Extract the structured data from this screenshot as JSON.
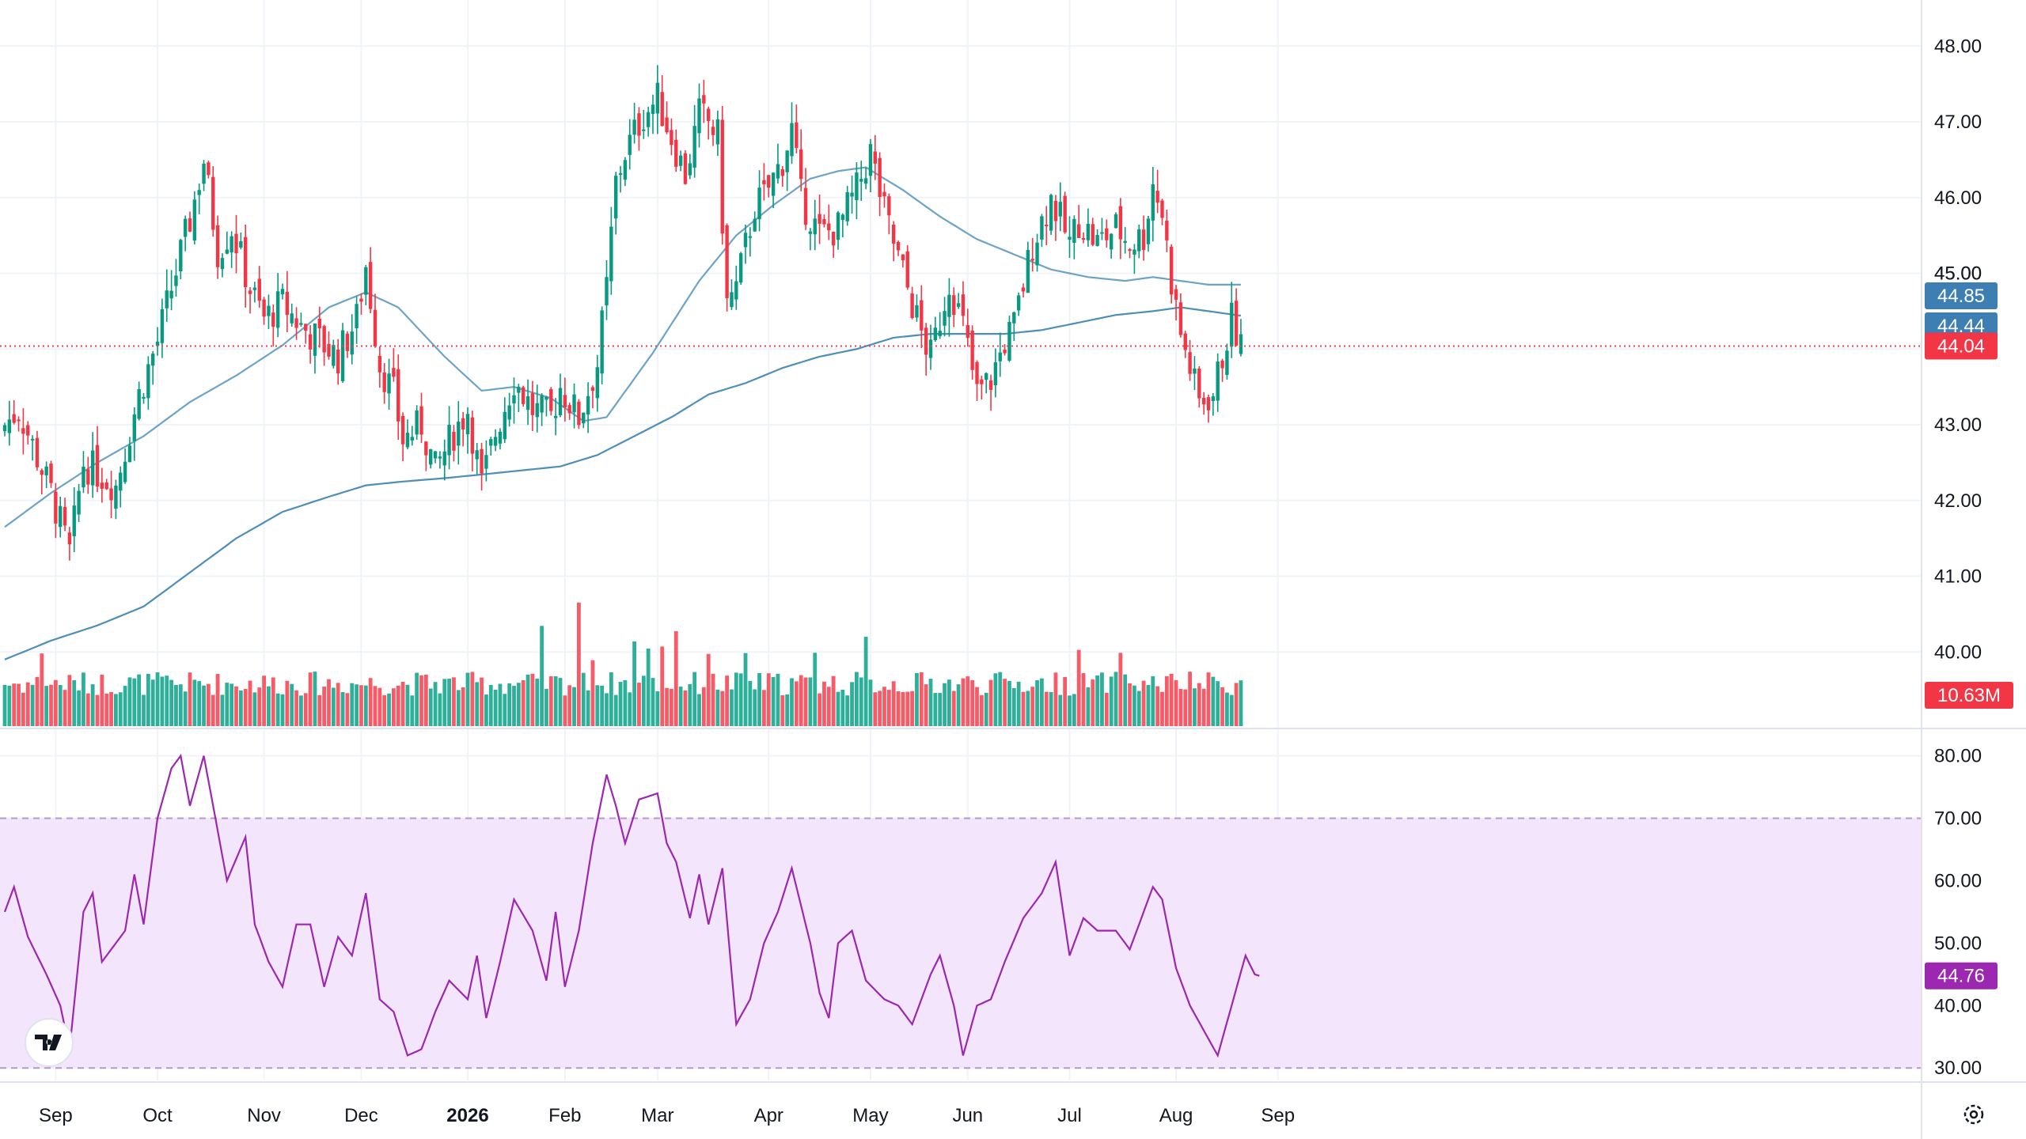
{
  "chart_data": {
    "type": "candlestick",
    "price_axis": {
      "range": [
        39.0,
        48.4
      ],
      "ticks": [
        "48.00",
        "47.00",
        "46.00",
        "45.00",
        "44.00",
        "43.00",
        "42.00",
        "41.00",
        "40.00"
      ]
    },
    "rsi_axis": {
      "range": [
        28,
        84
      ],
      "ticks": [
        "80.00",
        "70.00",
        "60.00",
        "50.00",
        "40.00",
        "30.00"
      ],
      "band": [
        30,
        70
      ]
    },
    "time_axis": {
      "labels": [
        {
          "text": "Sep",
          "bar": 11,
          "bold": false
        },
        {
          "text": "Oct",
          "bar": 33,
          "bold": false
        },
        {
          "text": "Nov",
          "bar": 56,
          "bold": false
        },
        {
          "text": "Dec",
          "bar": 77,
          "bold": false
        },
        {
          "text": "2026",
          "bar": 100,
          "bold": true
        },
        {
          "text": "Feb",
          "bar": 121,
          "bold": false
        },
        {
          "text": "Mar",
          "bar": 141,
          "bold": false
        },
        {
          "text": "Apr",
          "bar": 165,
          "bold": false
        },
        {
          "text": "May",
          "bar": 187,
          "bold": false
        },
        {
          "text": "Jun",
          "bar": 208,
          "bold": false
        },
        {
          "text": "Jul",
          "bar": 230,
          "bold": false
        },
        {
          "text": "Aug",
          "bar": 253,
          "bold": false
        },
        {
          "text": "Sep",
          "bar": 275,
          "bold": false
        }
      ]
    },
    "last_values": {
      "close": "44.04",
      "ma_fast": "44.85",
      "ma_slow": "44.44",
      "ma_axis_label": "45.00",
      "volume": "10.63M",
      "rsi": "44.76"
    },
    "anchors": {
      "close": [
        [
          0,
          43.0
        ],
        [
          3,
          43.2
        ],
        [
          10,
          42.1
        ],
        [
          14,
          41.3
        ],
        [
          17,
          42.5
        ],
        [
          24,
          42.2
        ],
        [
          29,
          43.4
        ],
        [
          33,
          44.1
        ],
        [
          36,
          44.8
        ],
        [
          40,
          45.7
        ],
        [
          43,
          46.5
        ],
        [
          46,
          45.3
        ],
        [
          49,
          45.6
        ],
        [
          53,
          44.8
        ],
        [
          56,
          44.4
        ],
        [
          60,
          44.6
        ],
        [
          64,
          44.3
        ],
        [
          68,
          44.1
        ],
        [
          72,
          43.9
        ],
        [
          76,
          44.4
        ],
        [
          78,
          45.1
        ],
        [
          81,
          43.8
        ],
        [
          84,
          43.4
        ],
        [
          86,
          42.8
        ],
        [
          90,
          43.0
        ],
        [
          93,
          42.4
        ],
        [
          97,
          42.9
        ],
        [
          100,
          43.2
        ],
        [
          103,
          42.2
        ],
        [
          106,
          42.9
        ],
        [
          110,
          43.6
        ],
        [
          114,
          43.2
        ],
        [
          118,
          43.1
        ],
        [
          120,
          43.5
        ],
        [
          124,
          43.1
        ],
        [
          128,
          43.8
        ],
        [
          130,
          44.8
        ],
        [
          132,
          46.2
        ],
        [
          134,
          46.6
        ],
        [
          138,
          47.1
        ],
        [
          141,
          47.3
        ],
        [
          144,
          46.8
        ],
        [
          147,
          46.3
        ],
        [
          150,
          47.1
        ],
        [
          152,
          47.0
        ],
        [
          154,
          46.8
        ],
        [
          156,
          44.6
        ],
        [
          158,
          44.8
        ],
        [
          162,
          45.9
        ],
        [
          164,
          46.0
        ],
        [
          168,
          46.5
        ],
        [
          170,
          46.9
        ],
        [
          172,
          46.0
        ],
        [
          176,
          45.5
        ],
        [
          180,
          45.6
        ],
        [
          184,
          46.1
        ],
        [
          187,
          46.6
        ],
        [
          190,
          45.8
        ],
        [
          194,
          45.0
        ],
        [
          198,
          44.2
        ],
        [
          200,
          43.9
        ],
        [
          204,
          44.9
        ],
        [
          207,
          44.3
        ],
        [
          210,
          43.4
        ],
        [
          213,
          43.6
        ],
        [
          216,
          44.1
        ],
        [
          218,
          44.3
        ],
        [
          222,
          45.4
        ],
        [
          226,
          46.0
        ],
        [
          230,
          45.4
        ],
        [
          232,
          45.7
        ],
        [
          236,
          45.4
        ],
        [
          240,
          45.6
        ],
        [
          243,
          45.4
        ],
        [
          246,
          45.5
        ],
        [
          248,
          46.2
        ],
        [
          250,
          45.8
        ],
        [
          252,
          44.9
        ],
        [
          254,
          44.2
        ],
        [
          258,
          43.3
        ],
        [
          261,
          43.4
        ],
        [
          265,
          44.4
        ],
        [
          267,
          44.04
        ]
      ],
      "ma_fast": [
        [
          0,
          41.65
        ],
        [
          10,
          42.1
        ],
        [
          20,
          42.5
        ],
        [
          30,
          42.85
        ],
        [
          40,
          43.3
        ],
        [
          50,
          43.65
        ],
        [
          60,
          44.05
        ],
        [
          70,
          44.55
        ],
        [
          78,
          44.75
        ],
        [
          85,
          44.55
        ],
        [
          95,
          43.9
        ],
        [
          103,
          43.45
        ],
        [
          110,
          43.5
        ],
        [
          118,
          43.35
        ],
        [
          125,
          43.05
        ],
        [
          130,
          43.1
        ],
        [
          140,
          43.95
        ],
        [
          150,
          44.9
        ],
        [
          158,
          45.5
        ],
        [
          166,
          45.9
        ],
        [
          174,
          46.25
        ],
        [
          180,
          46.35
        ],
        [
          186,
          46.4
        ],
        [
          194,
          46.1
        ],
        [
          202,
          45.75
        ],
        [
          210,
          45.45
        ],
        [
          218,
          45.25
        ],
        [
          226,
          45.05
        ],
        [
          234,
          44.95
        ],
        [
          242,
          44.9
        ],
        [
          248,
          44.95
        ],
        [
          254,
          44.9
        ],
        [
          260,
          44.85
        ],
        [
          267,
          44.85
        ]
      ],
      "ma_slow": [
        [
          0,
          39.9
        ],
        [
          10,
          40.15
        ],
        [
          20,
          40.35
        ],
        [
          30,
          40.6
        ],
        [
          40,
          41.05
        ],
        [
          50,
          41.5
        ],
        [
          60,
          41.85
        ],
        [
          70,
          42.05
        ],
        [
          78,
          42.2
        ],
        [
          86,
          42.25
        ],
        [
          96,
          42.3
        ],
        [
          104,
          42.35
        ],
        [
          112,
          42.4
        ],
        [
          120,
          42.45
        ],
        [
          128,
          42.6
        ],
        [
          136,
          42.85
        ],
        [
          144,
          43.1
        ],
        [
          152,
          43.4
        ],
        [
          160,
          43.55
        ],
        [
          168,
          43.75
        ],
        [
          176,
          43.9
        ],
        [
          184,
          44.0
        ],
        [
          192,
          44.15
        ],
        [
          200,
          44.2
        ],
        [
          208,
          44.2
        ],
        [
          216,
          44.2
        ],
        [
          224,
          44.25
        ],
        [
          232,
          44.35
        ],
        [
          240,
          44.45
        ],
        [
          248,
          44.5
        ],
        [
          254,
          44.55
        ],
        [
          260,
          44.5
        ],
        [
          267,
          44.44
        ]
      ],
      "rsi": [
        [
          0,
          55
        ],
        [
          2,
          59
        ],
        [
          5,
          51
        ],
        [
          9,
          45
        ],
        [
          12,
          40
        ],
        [
          14,
          33
        ],
        [
          17,
          55
        ],
        [
          19,
          58
        ],
        [
          21,
          47
        ],
        [
          26,
          52
        ],
        [
          28,
          61
        ],
        [
          30,
          53
        ],
        [
          33,
          70
        ],
        [
          36,
          78
        ],
        [
          38,
          80
        ],
        [
          40,
          72
        ],
        [
          43,
          80
        ],
        [
          45,
          72
        ],
        [
          48,
          60
        ],
        [
          52,
          67
        ],
        [
          54,
          53
        ],
        [
          57,
          47
        ],
        [
          60,
          43
        ],
        [
          63,
          53
        ],
        [
          66,
          53
        ],
        [
          69,
          43
        ],
        [
          72,
          51
        ],
        [
          75,
          48
        ],
        [
          78,
          58
        ],
        [
          81,
          41
        ],
        [
          84,
          39
        ],
        [
          87,
          32
        ],
        [
          90,
          33
        ],
        [
          93,
          39
        ],
        [
          96,
          44
        ],
        [
          100,
          41
        ],
        [
          102,
          48
        ],
        [
          104,
          38
        ],
        [
          107,
          47
        ],
        [
          110,
          57
        ],
        [
          114,
          52
        ],
        [
          117,
          44
        ],
        [
          119,
          55
        ],
        [
          121,
          43
        ],
        [
          124,
          52
        ],
        [
          127,
          66
        ],
        [
          130,
          77
        ],
        [
          132,
          72
        ],
        [
          134,
          66
        ],
        [
          137,
          73
        ],
        [
          141,
          74
        ],
        [
          143,
          66
        ],
        [
          145,
          63
        ],
        [
          148,
          54
        ],
        [
          150,
          61
        ],
        [
          152,
          53
        ],
        [
          155,
          62
        ],
        [
          158,
          37
        ],
        [
          161,
          41
        ],
        [
          164,
          50
        ],
        [
          167,
          55
        ],
        [
          170,
          62
        ],
        [
          172,
          56
        ],
        [
          174,
          50
        ],
        [
          176,
          42
        ],
        [
          178,
          38
        ],
        [
          180,
          50
        ],
        [
          183,
          52
        ],
        [
          186,
          44
        ],
        [
          190,
          41
        ],
        [
          193,
          40
        ],
        [
          196,
          37
        ],
        [
          200,
          45
        ],
        [
          202,
          48
        ],
        [
          205,
          40
        ],
        [
          207,
          32
        ],
        [
          210,
          40
        ],
        [
          213,
          41
        ],
        [
          216,
          47
        ],
        [
          220,
          54
        ],
        [
          224,
          58
        ],
        [
          227,
          63
        ],
        [
          230,
          48
        ],
        [
          233,
          54
        ],
        [
          236,
          52
        ],
        [
          240,
          52
        ],
        [
          243,
          49
        ],
        [
          246,
          55
        ],
        [
          248,
          59
        ],
        [
          250,
          57
        ],
        [
          253,
          46
        ],
        [
          256,
          40
        ],
        [
          259,
          36
        ],
        [
          262,
          32
        ],
        [
          265,
          40
        ],
        [
          268,
          48
        ],
        [
          270,
          45
        ],
        [
          271,
          44.76
        ]
      ]
    }
  }
}
